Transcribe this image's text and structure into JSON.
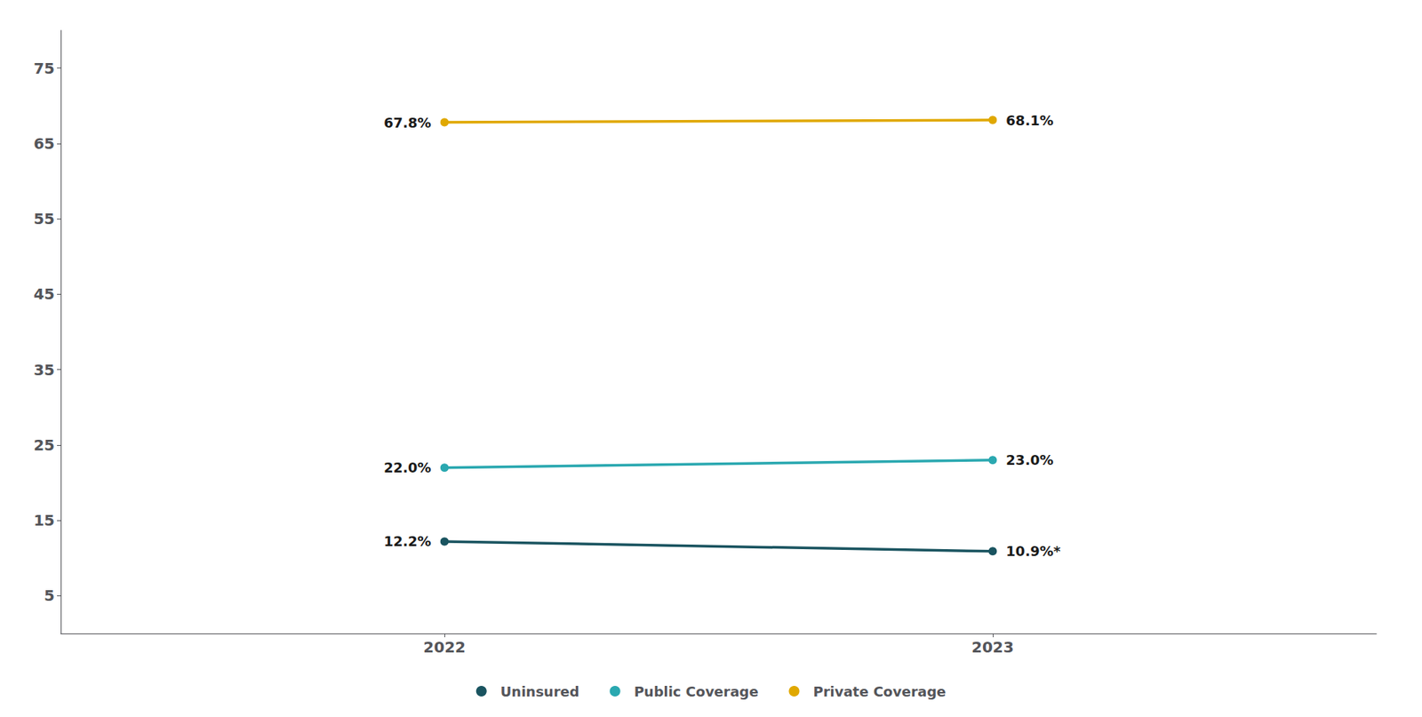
{
  "chart_data": {
    "type": "line",
    "x": [
      2022,
      2023
    ],
    "series": [
      {
        "name": "Uninsured",
        "color": "#1a5460",
        "marker": "o",
        "values": [
          12.2,
          10.9
        ],
        "value_labels": [
          "12.2%",
          "10.9%*"
        ]
      },
      {
        "name": "Public Coverage",
        "color": "#2aa8b0",
        "marker": "o",
        "values": [
          22.0,
          23.0
        ],
        "value_labels": [
          "22.0%",
          "23.0%"
        ]
      },
      {
        "name": "Private Coverage",
        "color": "#e0a800",
        "marker": "o",
        "values": [
          67.8,
          68.1
        ],
        "value_labels": [
          "67.8%",
          "68.1%"
        ]
      }
    ],
    "xlim": [
      2021.3,
      2023.7
    ],
    "xticks": [
      2022,
      2023
    ],
    "ylim": [
      0,
      80
    ],
    "yticks": [
      5,
      15,
      25,
      35,
      45,
      55,
      65,
      75
    ],
    "grid": false,
    "legend": "bottom",
    "data_labels": true
  }
}
